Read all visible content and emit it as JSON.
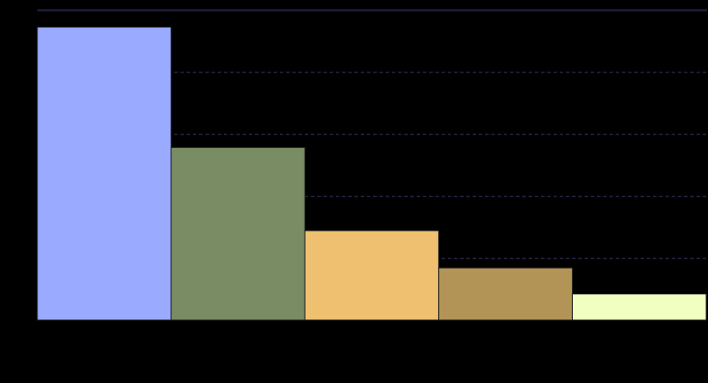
{
  "chart_data": {
    "type": "bar",
    "title": "",
    "xlabel": "",
    "ylabel": "",
    "categories": [
      "",
      "",
      "",
      "",
      ""
    ],
    "values": [
      236,
      139,
      72,
      42,
      21
    ],
    "ylim": [
      0,
      250
    ],
    "yticks": [
      0,
      50,
      100,
      150,
      200,
      250
    ],
    "grid": true,
    "legend": "none",
    "bar_colors": [
      "#9aabff",
      "#798c64",
      "#efc070",
      "#b29456",
      "#f1ffc1"
    ],
    "bar_edge_color": "#222222",
    "grid_color": "#232342",
    "background": "#000000"
  }
}
